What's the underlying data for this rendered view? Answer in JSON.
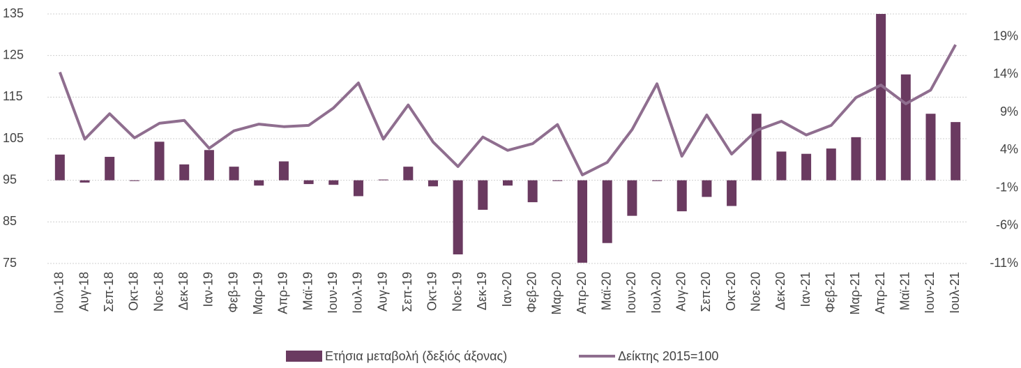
{
  "chart_data": {
    "type": "bar-line",
    "categories": [
      "Ιουλ-18",
      "Αυγ-18",
      "Σεπ-18",
      "Οκτ-18",
      "Νοε-18",
      "Δεκ-18",
      "Ιαν-19",
      "Φεβ-19",
      "Μαρ-19",
      "Απρ-19",
      "Μαϊ-19",
      "Ιουν-19",
      "Ιουλ-19",
      "Αυγ-19",
      "Σεπ-19",
      "Οκτ-19",
      "Νοε-19",
      "Δεκ-19",
      "Ιαν-20",
      "Φεβ-20",
      "Μαρ-20",
      "Απρ-20",
      "Μαϊ-20",
      "Ιουν-20",
      "Ιουλ-20",
      "Αυγ-20",
      "Σεπ-20",
      "Οκτ-20",
      "Νοε-20",
      "Δεκ-20",
      "Ιαν-21",
      "Φεβ-21",
      "Μαρ-21",
      "Απρ-21",
      "Μαϊ-21",
      "Ιουν-21",
      "Ιουλ-21"
    ],
    "series": [
      {
        "name": "Ετήσια μεταβολή (δεξιός άξονας)",
        "type": "bar",
        "axis": "y2",
        "color": "#6a3a60",
        "values": [
          3.4,
          -0.3,
          3.1,
          -0.1,
          5.1,
          2.1,
          4.0,
          1.8,
          -0.7,
          2.5,
          -0.5,
          -0.6,
          -2.1,
          0.1,
          1.8,
          -0.8,
          -9.8,
          -3.9,
          -0.7,
          -2.9,
          -0.1,
          -10.9,
          -8.3,
          -4.7,
          -0.1,
          -4.1,
          -2.2,
          -3.4,
          8.8,
          3.8,
          3.5,
          4.2,
          5.7,
          22,
          14.0,
          8.8,
          7.7
        ]
      },
      {
        "name": "Δείκτης 2015=100",
        "type": "line",
        "axis": "y",
        "color": "#8f6e8f",
        "values": [
          121,
          104.9,
          111,
          105.2,
          108.7,
          109.4,
          102.7,
          106.9,
          108.5,
          107.9,
          108.2,
          112.4,
          118.4,
          104.9,
          113.1,
          104.2,
          98.3,
          105.4,
          102.2,
          103.8,
          108.4,
          96.3,
          99.3,
          107.2,
          118.2,
          100.8,
          110.7,
          101.3,
          107,
          109.2,
          105.9,
          108.2,
          114.9,
          117.9,
          113.4,
          116.7,
          127.6
        ]
      }
    ],
    "ylim": [
      75,
      135
    ],
    "yticks": [
      75,
      85,
      95,
      105,
      115,
      125,
      135
    ],
    "y2lim": [
      -11,
      22
    ],
    "y2ticks": [
      {
        "value": -11,
        "label": "-11%"
      },
      {
        "value": -6,
        "label": "-6%"
      },
      {
        "value": -1,
        "label": "-1%"
      },
      {
        "value": 4,
        "label": "4%"
      },
      {
        "value": 9,
        "label": "9%"
      },
      {
        "value": 14,
        "label": "14%"
      },
      {
        "value": 19,
        "label": "19%"
      }
    ],
    "grid": true,
    "legend": "bottom"
  }
}
